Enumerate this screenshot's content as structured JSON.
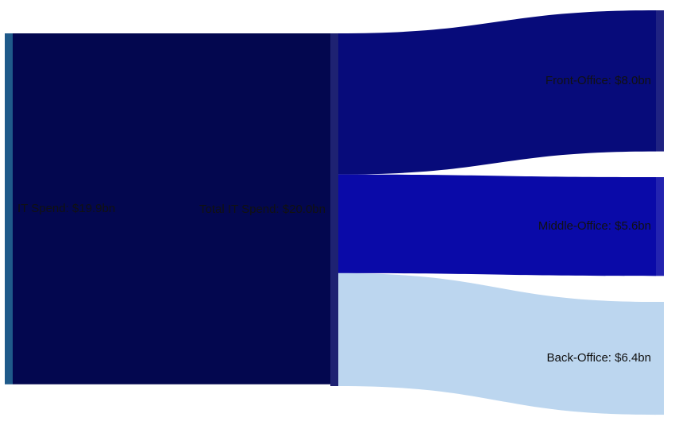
{
  "chart_data": {
    "type": "sankey",
    "nodes": [
      {
        "label": "IT Spend: $19.9bn",
        "color": "#1f5a8a"
      },
      {
        "label": "Total IT Spend: $20.0bn",
        "color": "#1e2272"
      },
      {
        "label": "Front-Office: $8.0bn",
        "color": "#1f2282"
      },
      {
        "label": "Middle-Office: $5.6bn",
        "color": "#2323b0"
      },
      {
        "label": "Back-Office: $6.4bn",
        "color": "#bcd6ef"
      }
    ],
    "links": [
      {
        "source": 0,
        "target": 1,
        "value": 19.9,
        "color": "#03074f"
      },
      {
        "source": 1,
        "target": 2,
        "value": 8.0,
        "color": "#070b7a"
      },
      {
        "source": 1,
        "target": 3,
        "value": 5.6,
        "color": "#0a0aa8"
      },
      {
        "source": 1,
        "target": 4,
        "value": 6.4,
        "color": "#bcd6ef"
      }
    ]
  }
}
